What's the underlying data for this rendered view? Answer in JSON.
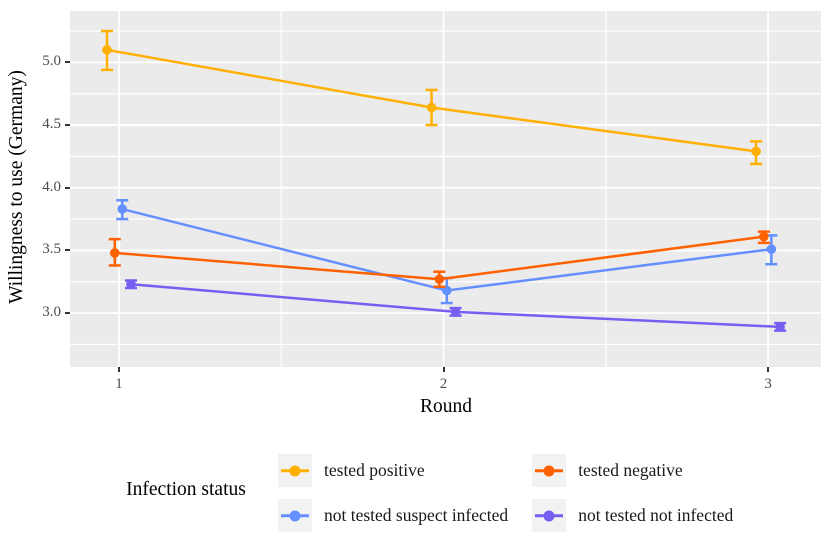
{
  "chart_data": {
    "type": "line",
    "title": "",
    "xlabel": "Round",
    "ylabel": "Willingness to use (Germany)",
    "x": [
      1,
      2,
      3
    ],
    "xtick_labels": [
      "1",
      "2",
      "3"
    ],
    "ytick_values": [
      3.0,
      3.5,
      4.0,
      4.5,
      5.0
    ],
    "ytick_labels": [
      "3.0",
      "3.5",
      "4.0",
      "4.5",
      "5.0"
    ],
    "xlim": [
      0.849,
      3.163
    ],
    "ylim": [
      2.57,
      5.41
    ],
    "x_minor": [
      1.5,
      2.5
    ],
    "y_minor": [
      2.75,
      3.25,
      3.75,
      4.25,
      4.75,
      5.25
    ],
    "grid": "white major and minor gridlines on gray panel",
    "error_bars": true,
    "legend_title": "Infection status",
    "legend_position": "bottom",
    "legend_order": [
      0,
      2,
      1,
      3
    ],
    "series": [
      {
        "name": "tested positive",
        "color": "#FFB000",
        "marker": "circle",
        "x_offset": -0.037,
        "values": [
          5.1,
          4.64,
          4.29
        ],
        "err_low": [
          4.94,
          4.5,
          4.19
        ],
        "err_high": [
          5.25,
          4.78,
          4.37
        ]
      },
      {
        "name": "tested negative",
        "color": "#FE6100",
        "marker": "circle",
        "x_offset": -0.013,
        "values": [
          3.48,
          3.27,
          3.61
        ],
        "err_low": [
          3.38,
          3.21,
          3.56
        ],
        "err_high": [
          3.59,
          3.33,
          3.65
        ]
      },
      {
        "name": "not tested suspect infected",
        "color": "#648FFF",
        "marker": "circle",
        "x_offset": 0.01,
        "values": [
          3.83,
          3.18,
          3.51
        ],
        "err_low": [
          3.75,
          3.08,
          3.39
        ],
        "err_high": [
          3.9,
          3.28,
          3.62
        ]
      },
      {
        "name": "not tested not infected",
        "color": "#785EF0",
        "marker": "circle",
        "x_offset": 0.037,
        "values": [
          3.23,
          3.01,
          2.89
        ],
        "err_low": [
          3.2,
          2.98,
          2.86
        ],
        "err_high": [
          3.26,
          3.04,
          2.92
        ]
      }
    ]
  },
  "colors": {
    "page_bg": "#FFFFFF",
    "panel_bg": "#EBEBEB",
    "grid": "#FFFFFF",
    "tick": "#333333",
    "tick_label": "#4D4D4D",
    "axis_title": "#000000",
    "legend_key_bg": "#F2F2F2",
    "legend_label": "#1A1A1A"
  }
}
